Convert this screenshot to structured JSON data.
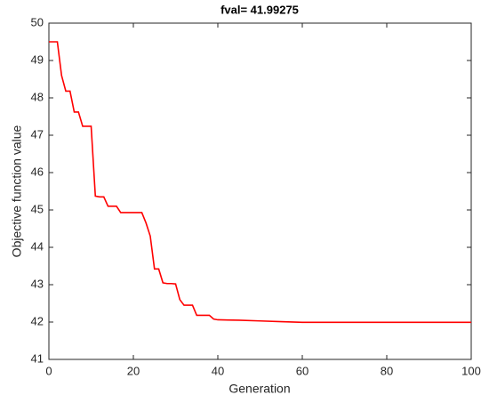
{
  "chart_data": {
    "type": "line",
    "title": "fval= 41.99275",
    "x_label": "Generation",
    "y_label": "Objective function value",
    "x": [
      0,
      1,
      2,
      3,
      4,
      5,
      6,
      7,
      8,
      9,
      10,
      11,
      12,
      13,
      14,
      15,
      16,
      17,
      18,
      19,
      20,
      21,
      22,
      23,
      24,
      25,
      26,
      27,
      28,
      29,
      30,
      31,
      32,
      33,
      34,
      35,
      36,
      37,
      38,
      39,
      40,
      45,
      50,
      55,
      60,
      100
    ],
    "series": [
      {
        "name": "fval",
        "color": "#ff0000",
        "values": [
          49.5,
          49.5,
          49.5,
          48.6,
          48.18,
          48.18,
          47.62,
          47.62,
          47.24,
          47.24,
          47.24,
          45.37,
          45.35,
          45.35,
          45.1,
          45.1,
          45.1,
          44.93,
          44.93,
          44.93,
          44.93,
          44.93,
          44.93,
          44.65,
          44.3,
          43.42,
          43.42,
          43.05,
          43.03,
          43.03,
          43.02,
          42.6,
          42.45,
          42.45,
          42.45,
          42.18,
          42.18,
          42.18,
          42.18,
          42.08,
          42.06,
          42.05,
          42.03,
          42.01,
          41.99275,
          41.99275
        ]
      }
    ],
    "xlim": [
      0,
      100
    ],
    "xticks": [
      0,
      20,
      40,
      60,
      80,
      100
    ],
    "ylim": [
      41,
      50
    ],
    "yticks": [
      41,
      42,
      43,
      44,
      45,
      46,
      47,
      48,
      49,
      50
    ],
    "grid": false
  }
}
